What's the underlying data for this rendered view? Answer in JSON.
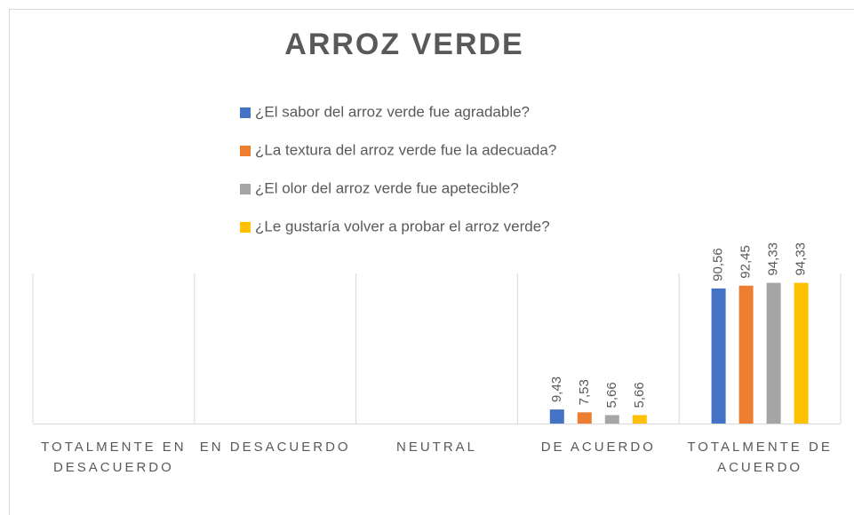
{
  "chart_data": {
    "type": "bar",
    "title": "ARROZ VERDE",
    "categories": [
      "TOTALMENTE EN DESACUERDO",
      "EN DESACUERDO",
      "NEUTRAL",
      "DE ACUERDO",
      "TOTALMENTE DE ACUERDO"
    ],
    "series": [
      {
        "name": "¿El sabor del arroz verde fue agradable?",
        "color": "#4472c4",
        "values": [
          null,
          null,
          null,
          9.43,
          90.56
        ],
        "value_labels": [
          null,
          null,
          null,
          "9,43",
          "90,56"
        ]
      },
      {
        "name": "¿La textura del arroz verde fue la adecuada?",
        "color": "#ed7d31",
        "values": [
          null,
          null,
          null,
          7.53,
          92.45
        ],
        "value_labels": [
          null,
          null,
          null,
          "7,53",
          "92,45"
        ]
      },
      {
        "name": "¿El olor del arroz verde fue apetecible?",
        "color": "#a5a5a5",
        "values": [
          null,
          null,
          null,
          5.66,
          94.33
        ],
        "value_labels": [
          null,
          null,
          null,
          "5,66",
          "94,33"
        ]
      },
      {
        "name": "¿Le gustaría volver a probar el arroz verde?",
        "color": "#ffc000",
        "values": [
          null,
          null,
          null,
          5.66,
          94.33
        ],
        "value_labels": [
          null,
          null,
          null,
          "5,66",
          "94,33"
        ]
      }
    ],
    "ylim": [
      0,
      100
    ]
  }
}
